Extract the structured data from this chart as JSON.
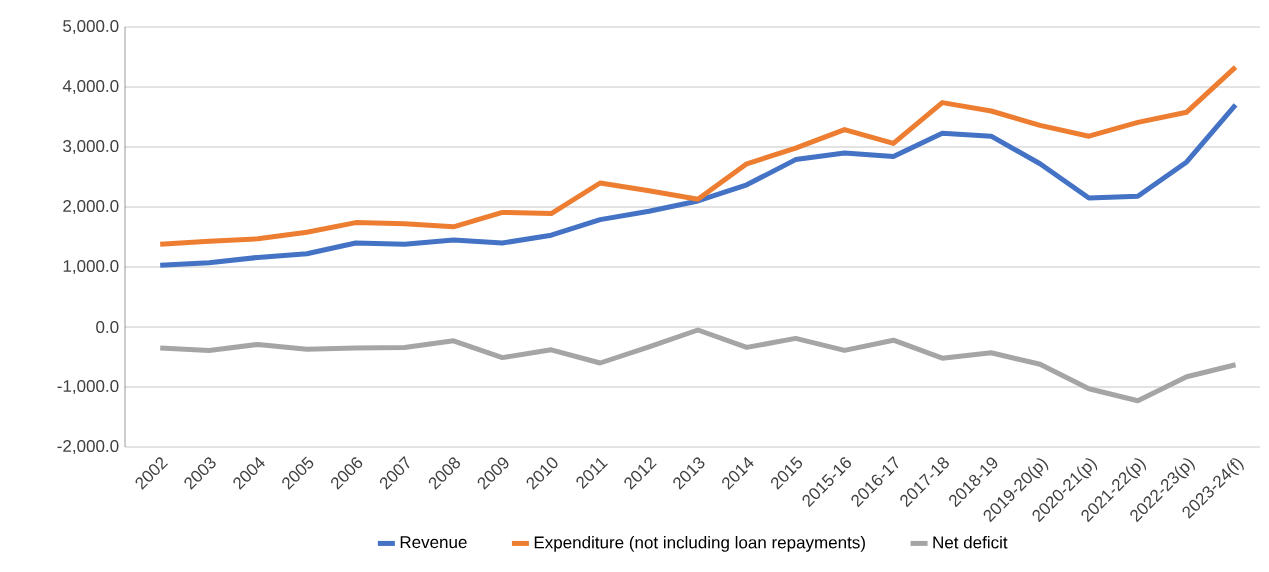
{
  "chart_data": {
    "type": "line",
    "categories": [
      "2002",
      "2003",
      "2004",
      "2005",
      "2006",
      "2007",
      "2008",
      "2009",
      "2010",
      "2011",
      "2012",
      "2013",
      "2014",
      "2015",
      "2015-16",
      "2016-17",
      "2017-18",
      "2018-19",
      "2019-20(p)",
      "2020-21(p)",
      "2021-22(p)",
      "2022-23(p)",
      "2023-24(f)"
    ],
    "series": [
      {
        "name": "Revenue",
        "color": "#4472c4",
        "values": [
          1030,
          1070,
          1160,
          1220,
          1400,
          1380,
          1450,
          1400,
          1530,
          1790,
          1930,
          2100,
          2370,
          2790,
          2900,
          2840,
          3230,
          3180,
          2720,
          2150,
          2180,
          2750,
          3700
        ]
      },
      {
        "name": "Expenditure (not including loan repayments)",
        "color": "#ed7d31",
        "values": [
          1380,
          1430,
          1470,
          1580,
          1740,
          1720,
          1670,
          1910,
          1890,
          2400,
          2270,
          2130,
          2720,
          2980,
          3290,
          3060,
          3740,
          3600,
          3360,
          3180,
          3410,
          3580,
          4330
        ]
      },
      {
        "name": "Net deficit",
        "color": "#a5a5a5",
        "values": [
          -350,
          -390,
          -290,
          -370,
          -350,
          -340,
          -230,
          -510,
          -380,
          -600,
          -330,
          -50,
          -340,
          -190,
          -390,
          -220,
          -520,
          -430,
          -620,
          -1030,
          -1230,
          -830,
          -630
        ]
      }
    ],
    "ylim": [
      -2000,
      5000
    ],
    "yticks": [
      {
        "value": -2000,
        "label": "-2,000.0"
      },
      {
        "value": -1000,
        "label": "-1,000.0"
      },
      {
        "value": 0,
        "label": "0.0"
      },
      {
        "value": 1000,
        "label": "1,000.0"
      },
      {
        "value": 2000,
        "label": "2,000.0"
      },
      {
        "value": 3000,
        "label": "3,000.0"
      },
      {
        "value": 4000,
        "label": "4,000.0"
      },
      {
        "value": 5000,
        "label": "5,000.0"
      }
    ],
    "grid": "y",
    "legend": "bottom",
    "marker": "none",
    "line_style": "solid"
  }
}
